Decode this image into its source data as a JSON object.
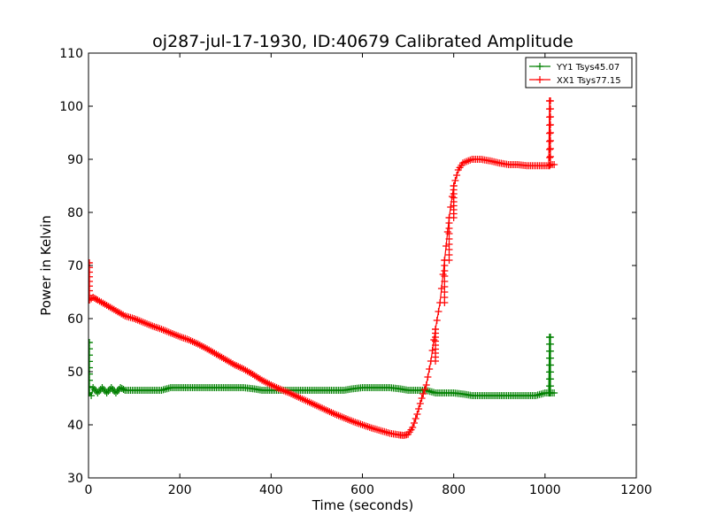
{
  "chart_data": {
    "type": "line",
    "title": "oj287-jul-17-1930, ID:40679 Calibrated Amplitude",
    "xlabel": "Time (seconds)",
    "ylabel": "Power in Kelvin",
    "xlim": [
      0,
      1200
    ],
    "ylim": [
      30,
      110
    ],
    "xticks": [
      0,
      200,
      400,
      600,
      800,
      1000,
      1200
    ],
    "yticks": [
      30,
      40,
      50,
      60,
      70,
      80,
      90,
      100,
      110
    ],
    "grid": false,
    "legend_position": "top-right",
    "marker": "plus",
    "series": [
      {
        "name": "YY1 Tsys45.07",
        "color": "#008000",
        "points": [
          [
            0,
            55.5
          ],
          [
            2,
            46
          ],
          [
            6,
            45.5
          ],
          [
            10,
            47
          ],
          [
            20,
            46
          ],
          [
            30,
            47
          ],
          [
            40,
            46
          ],
          [
            50,
            47
          ],
          [
            60,
            46
          ],
          [
            70,
            47
          ],
          [
            80,
            46.5
          ],
          [
            100,
            46.5
          ],
          [
            120,
            46.5
          ],
          [
            140,
            46.5
          ],
          [
            160,
            46.5
          ],
          [
            180,
            47
          ],
          [
            200,
            47
          ],
          [
            220,
            47
          ],
          [
            240,
            47
          ],
          [
            260,
            47
          ],
          [
            280,
            47
          ],
          [
            300,
            47
          ],
          [
            320,
            47
          ],
          [
            340,
            47
          ],
          [
            360,
            46.8
          ],
          [
            380,
            46.5
          ],
          [
            400,
            46.5
          ],
          [
            420,
            46.5
          ],
          [
            440,
            46.5
          ],
          [
            460,
            46.5
          ],
          [
            480,
            46.5
          ],
          [
            500,
            46.5
          ],
          [
            520,
            46.5
          ],
          [
            540,
            46.5
          ],
          [
            560,
            46.5
          ],
          [
            580,
            46.8
          ],
          [
            600,
            47
          ],
          [
            620,
            47
          ],
          [
            640,
            47
          ],
          [
            660,
            47
          ],
          [
            680,
            46.8
          ],
          [
            700,
            46.5
          ],
          [
            720,
            46.5
          ],
          [
            740,
            46.5
          ],
          [
            760,
            46
          ],
          [
            780,
            46
          ],
          [
            800,
            46
          ],
          [
            820,
            45.8
          ],
          [
            840,
            45.5
          ],
          [
            860,
            45.5
          ],
          [
            880,
            45.5
          ],
          [
            900,
            45.5
          ],
          [
            920,
            45.5
          ],
          [
            940,
            45.5
          ],
          [
            960,
            45.5
          ],
          [
            980,
            45.5
          ],
          [
            1000,
            46
          ],
          [
            1008,
            46
          ],
          [
            1010,
            56.5
          ],
          [
            1012,
            46
          ],
          [
            1020,
            46
          ]
        ]
      },
      {
        "name": "XX1 Tsys77.15",
        "color": "#ff0000",
        "points": [
          [
            0,
            70.5
          ],
          [
            2,
            63.5
          ],
          [
            10,
            64
          ],
          [
            20,
            63.5
          ],
          [
            40,
            62.5
          ],
          [
            60,
            61.5
          ],
          [
            80,
            60.5
          ],
          [
            100,
            60
          ],
          [
            120,
            59.3
          ],
          [
            140,
            58.6
          ],
          [
            160,
            58
          ],
          [
            180,
            57.3
          ],
          [
            200,
            56.6
          ],
          [
            220,
            56
          ],
          [
            240,
            55.2
          ],
          [
            260,
            54.3
          ],
          [
            280,
            53.3
          ],
          [
            300,
            52.3
          ],
          [
            320,
            51.3
          ],
          [
            340,
            50.5
          ],
          [
            360,
            49.5
          ],
          [
            380,
            48.4
          ],
          [
            400,
            47.5
          ],
          [
            420,
            46.7
          ],
          [
            440,
            46
          ],
          [
            460,
            45.2
          ],
          [
            480,
            44.4
          ],
          [
            500,
            43.6
          ],
          [
            520,
            42.8
          ],
          [
            540,
            42
          ],
          [
            560,
            41.3
          ],
          [
            580,
            40.6
          ],
          [
            600,
            40
          ],
          [
            620,
            39.4
          ],
          [
            640,
            38.9
          ],
          [
            660,
            38.4
          ],
          [
            680,
            38.1
          ],
          [
            690,
            38
          ],
          [
            700,
            38.2
          ],
          [
            710,
            39.5
          ],
          [
            720,
            42
          ],
          [
            730,
            45
          ],
          [
            740,
            47.5
          ],
          [
            750,
            52
          ],
          [
            760,
            58
          ],
          [
            770,
            63
          ],
          [
            780,
            71
          ],
          [
            790,
            79
          ],
          [
            800,
            85
          ],
          [
            810,
            88
          ],
          [
            820,
            89.3
          ],
          [
            840,
            90
          ],
          [
            860,
            90
          ],
          [
            880,
            89.7
          ],
          [
            900,
            89.3
          ],
          [
            920,
            89
          ],
          [
            940,
            89
          ],
          [
            960,
            88.8
          ],
          [
            980,
            88.8
          ],
          [
            1000,
            88.8
          ],
          [
            1008,
            88.8
          ],
          [
            1010,
            101
          ],
          [
            1012,
            89
          ],
          [
            1020,
            89
          ]
        ]
      }
    ]
  }
}
